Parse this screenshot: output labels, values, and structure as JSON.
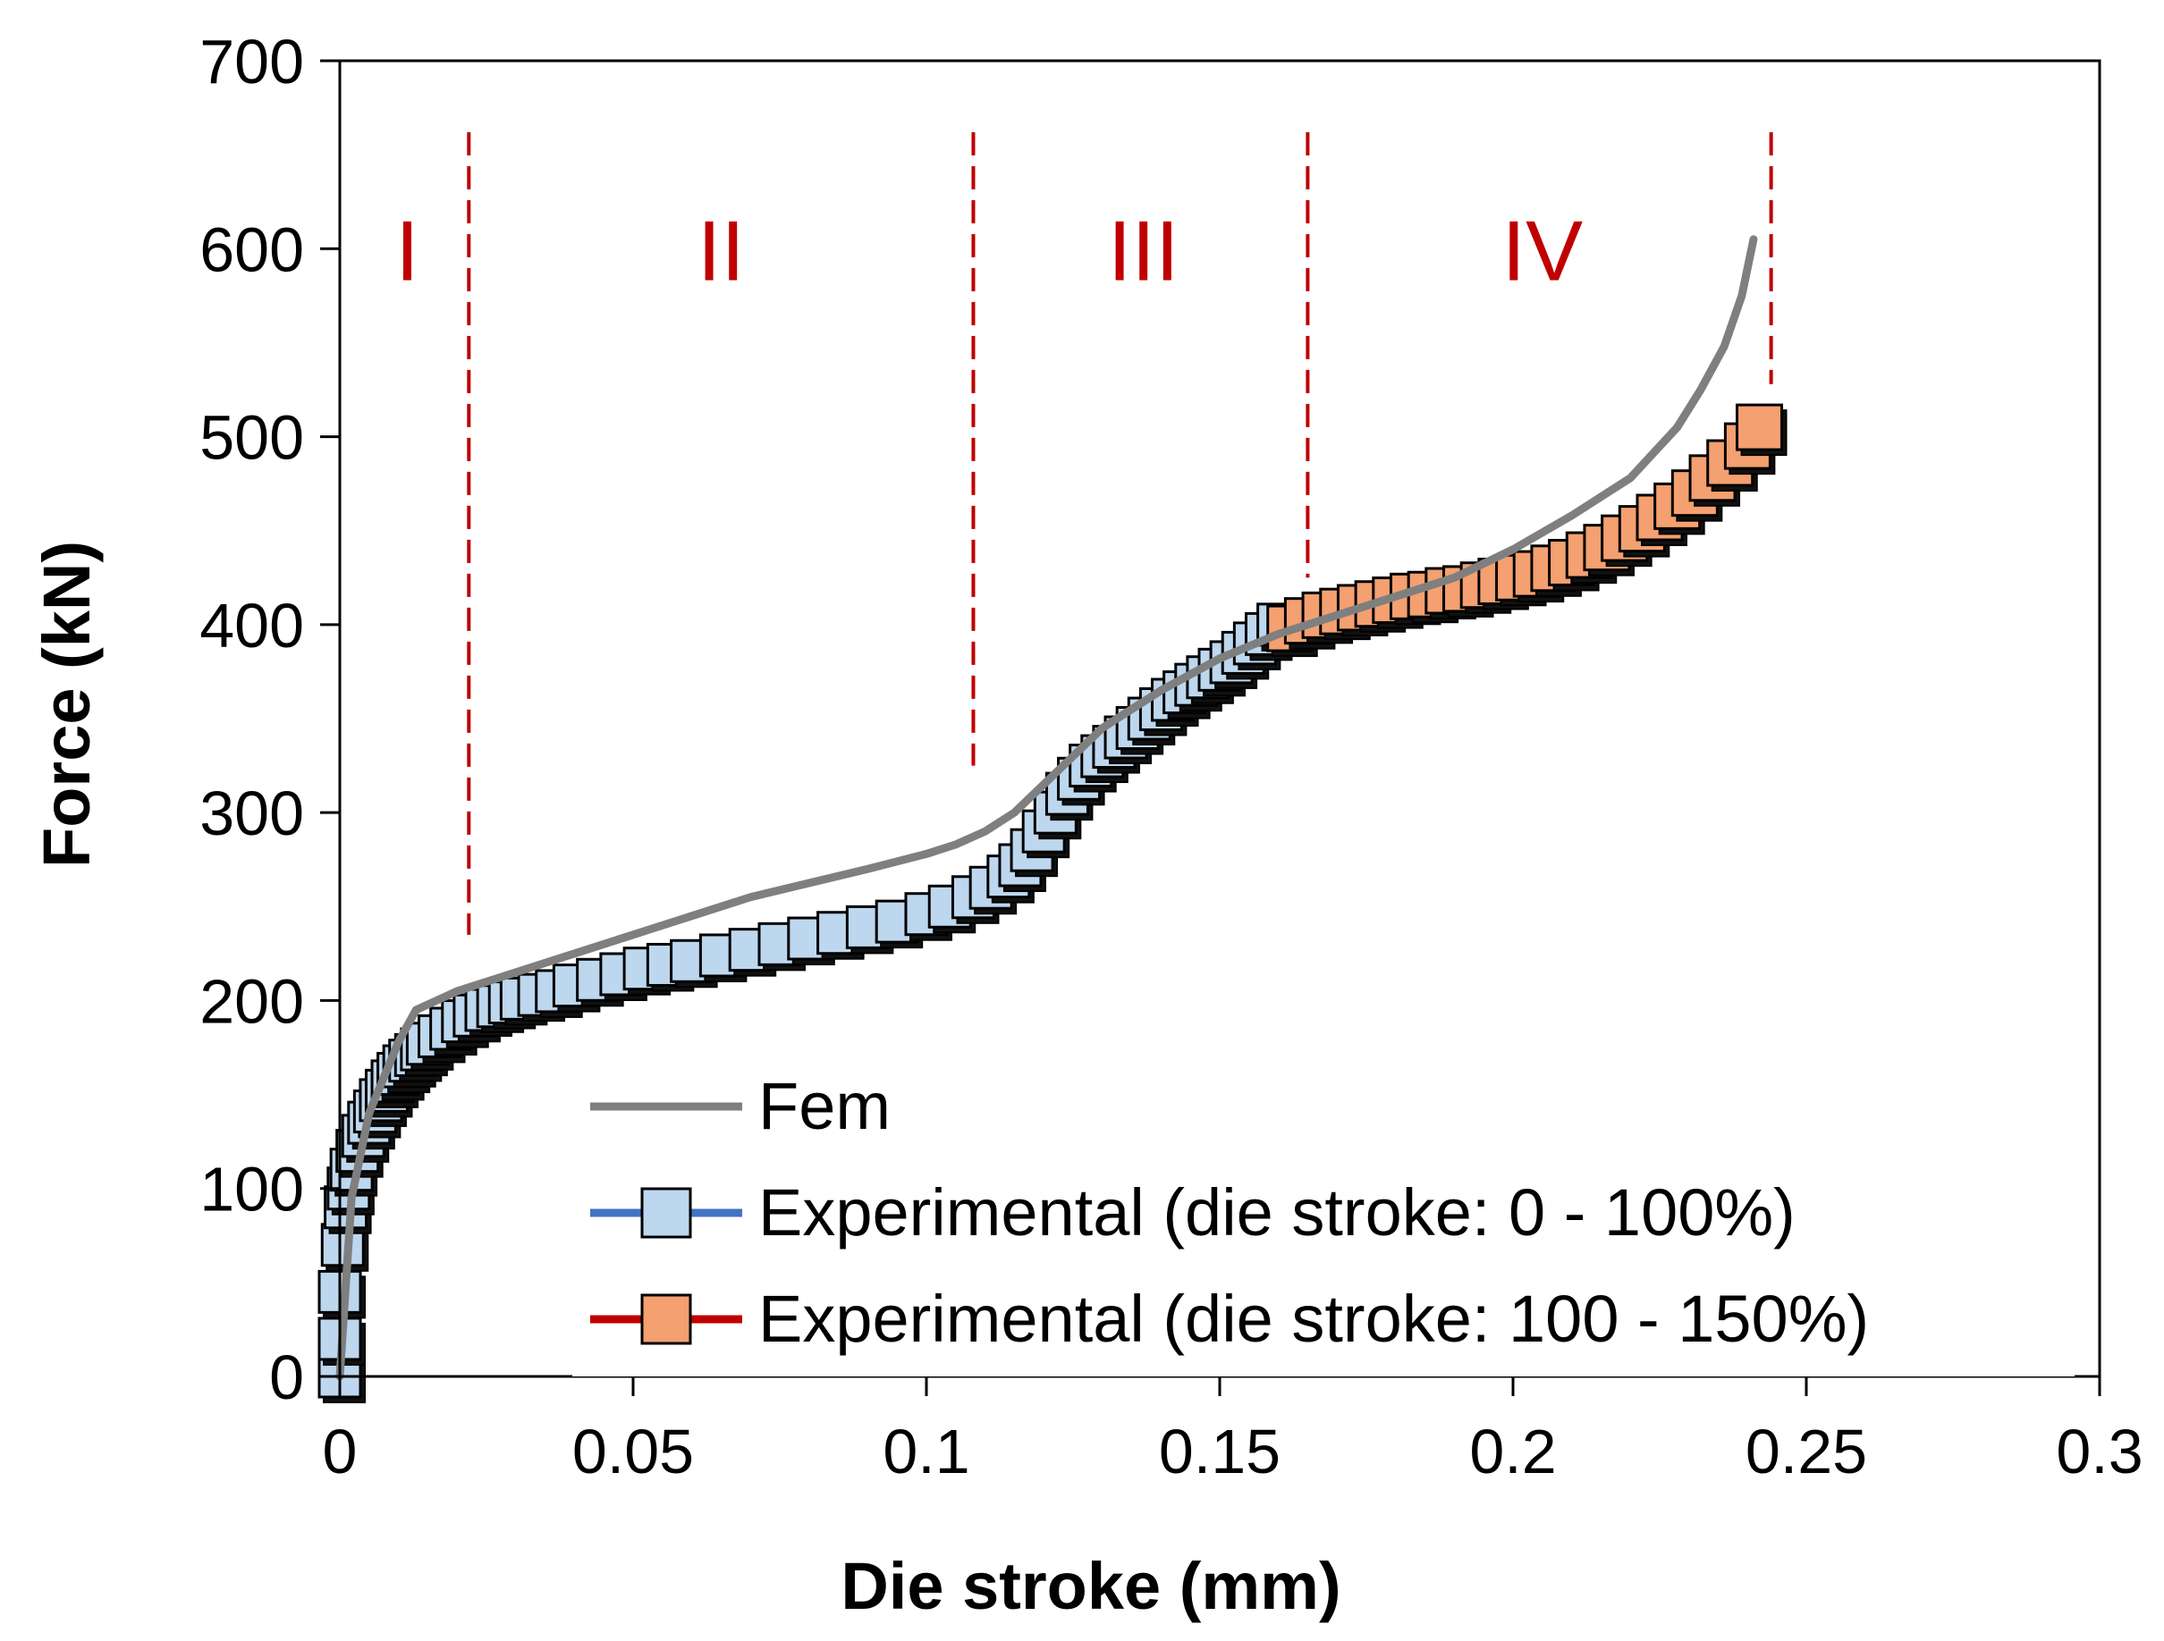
{
  "chart_data": {
    "type": "line",
    "title": "",
    "xlabel": "Die stroke (mm)",
    "ylabel": "Force (kN)",
    "xlim": [
      0,
      0.3
    ],
    "ylim": [
      0,
      700
    ],
    "x_ticks": [
      "0",
      "0.05",
      "0.1",
      "0.15",
      "0.2",
      "0.25",
      "0.3"
    ],
    "y_ticks": [
      "0",
      "100",
      "200",
      "300",
      "400",
      "500",
      "600",
      "700"
    ],
    "x_tick_values": [
      0,
      0.05,
      0.1,
      0.15,
      0.2,
      0.25,
      0.3
    ],
    "y_tick_values": [
      0,
      100,
      200,
      300,
      400,
      500,
      600,
      700
    ],
    "grid": false,
    "legend_position": "bottom-right",
    "regions": [
      {
        "label": "I",
        "x_center": 0.0115
      },
      {
        "label": "II",
        "x_center": 0.065
      },
      {
        "label": "III",
        "x_center": 0.137
      },
      {
        "label": "IV",
        "x_center": 0.205
      }
    ],
    "region_boundaries": [
      {
        "x": 0.022,
        "y_from": 235,
        "y_to": 662
      },
      {
        "x": 0.108,
        "y_from": 325,
        "y_to": 662
      },
      {
        "x": 0.165,
        "y_from": 425,
        "y_to": 662
      },
      {
        "x": 0.244,
        "y_from": 528,
        "y_to": 662
      }
    ],
    "boundary_color": "#c00000",
    "series": [
      {
        "name": "Fem",
        "color": "#7f7f7f",
        "marker": "none",
        "x": [
          0,
          0.002,
          0.005,
          0.01,
          0.013,
          0.02,
          0.03,
          0.05,
          0.07,
          0.09,
          0.1,
          0.105,
          0.11,
          0.115,
          0.12,
          0.125,
          0.13,
          0.14,
          0.15,
          0.16,
          0.17,
          0.18,
          0.19,
          0.2,
          0.21,
          0.22,
          0.228,
          0.232,
          0.236,
          0.239,
          0.241
        ],
        "y": [
          0,
          95,
          140,
          178,
          195,
          205,
          215,
          235,
          255,
          270,
          278,
          283,
          290,
          300,
          315,
          330,
          345,
          365,
          382,
          395,
          405,
          415,
          425,
          440,
          458,
          478,
          505,
          525,
          548,
          575,
          605
        ]
      },
      {
        "name": "Experimental (die stroke: 0 - 100%)",
        "color": "#bdd7ee",
        "line_color": "#4472c4",
        "marker": "square",
        "x": [
          0,
          0,
          0,
          0.0005,
          0.001,
          0.0015,
          0.002,
          0.003,
          0.004,
          0.005,
          0.006,
          0.007,
          0.008,
          0.009,
          0.01,
          0.011,
          0.012,
          0.013,
          0.014,
          0.015,
          0.017,
          0.019,
          0.021,
          0.023,
          0.025,
          0.027,
          0.029,
          0.031,
          0.034,
          0.037,
          0.04,
          0.044,
          0.048,
          0.052,
          0.056,
          0.06,
          0.065,
          0.07,
          0.075,
          0.08,
          0.085,
          0.09,
          0.095,
          0.1,
          0.104,
          0.108,
          0.111,
          0.114,
          0.116,
          0.118,
          0.12,
          0.122,
          0.124,
          0.126,
          0.128,
          0.13,
          0.132,
          0.134,
          0.136,
          0.138,
          0.14,
          0.142,
          0.144,
          0.146,
          0.148,
          0.15,
          0.152,
          0.154,
          0.156,
          0.158,
          0.16
        ],
        "y": [
          0,
          20,
          45,
          70,
          90,
          100,
          110,
          120,
          128,
          135,
          141,
          147,
          152,
          157,
          161,
          165,
          168,
          171,
          174,
          177,
          181,
          185,
          189,
          192,
          195,
          197,
          199,
          201,
          203,
          205,
          208,
          211,
          214,
          217,
          219,
          221,
          224,
          227,
          230,
          233,
          236,
          239,
          242,
          246,
          250,
          255,
          260,
          266,
          272,
          280,
          290,
          300,
          310,
          318,
          325,
          330,
          335,
          340,
          345,
          350,
          355,
          360,
          364,
          368,
          372,
          376,
          380,
          385,
          390,
          395,
          400
        ]
      },
      {
        "name": "Experimental (die stroke: 100 - 150%)",
        "color": "#f4a070",
        "line_color": "#c00000",
        "marker": "square",
        "x": [
          0.162,
          0.165,
          0.168,
          0.171,
          0.174,
          0.177,
          0.18,
          0.183,
          0.186,
          0.189,
          0.192,
          0.195,
          0.198,
          0.201,
          0.204,
          0.207,
          0.21,
          0.213,
          0.216,
          0.219,
          0.222,
          0.225,
          0.228,
          0.231,
          0.234,
          0.237,
          0.24,
          0.242
        ],
        "y": [
          398,
          402,
          405,
          407,
          409,
          411,
          413,
          415,
          416,
          418,
          419,
          421,
          423,
          425,
          427,
          430,
          433,
          437,
          441,
          446,
          451,
          457,
          463,
          470,
          478,
          486,
          495,
          505
        ]
      }
    ]
  }
}
